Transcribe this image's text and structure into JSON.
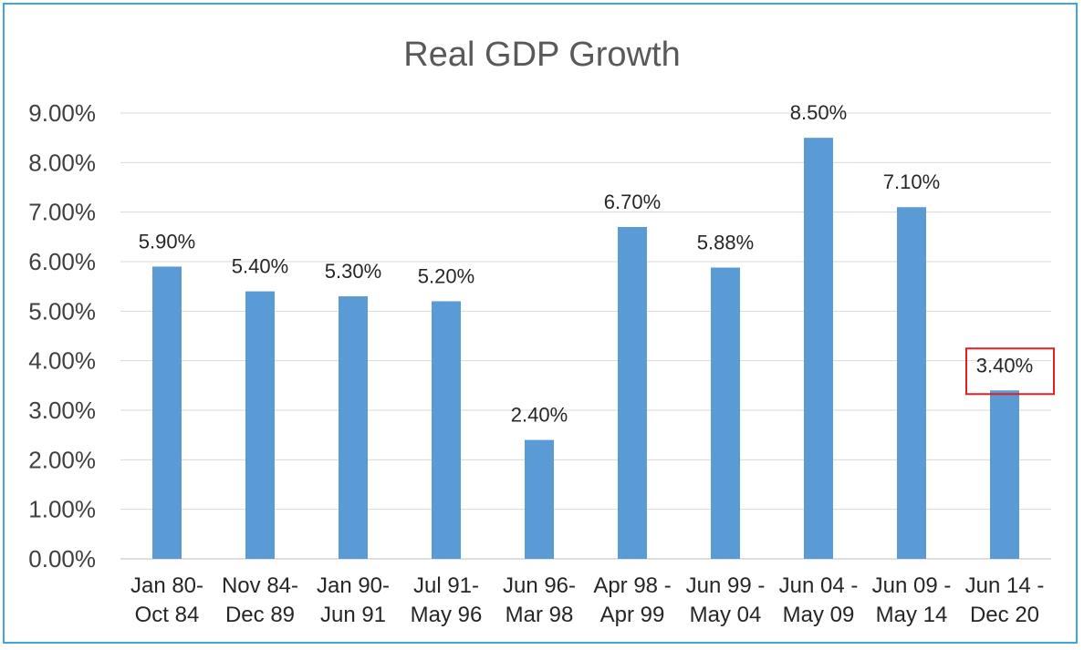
{
  "chart_data": {
    "type": "bar",
    "title": "Real GDP Growth",
    "categories": [
      [
        "Jan 80-",
        "Oct 84"
      ],
      [
        "Nov 84-",
        "Dec 89"
      ],
      [
        "Jan 90-",
        "Jun 91"
      ],
      [
        "Jul 91-",
        "May 96"
      ],
      [
        "Jun 96-",
        "Mar 98"
      ],
      [
        "Apr 98 -",
        "Apr 99"
      ],
      [
        "Jun 99 -",
        "May 04"
      ],
      [
        "Jun 04 -",
        "May 09"
      ],
      [
        "Jun 09 -",
        "May 14"
      ],
      [
        "Jun 14 -",
        "Dec 20"
      ]
    ],
    "values": [
      5.9,
      5.4,
      5.3,
      5.2,
      2.4,
      6.7,
      5.88,
      8.5,
      7.1,
      3.4
    ],
    "data_labels": [
      "5.90%",
      "5.40%",
      "5.30%",
      "5.20%",
      "2.40%",
      "6.70%",
      "5.88%",
      "8.50%",
      "7.10%",
      "3.40%"
    ],
    "yticks": [
      "0.00%",
      "1.00%",
      "2.00%",
      "3.00%",
      "4.00%",
      "5.00%",
      "6.00%",
      "7.00%",
      "8.00%",
      "9.00%"
    ],
    "ylim": [
      0,
      9
    ],
    "grid": true,
    "legend": "none",
    "highlighted_label_index": 9,
    "colors": {
      "bar": "#5b9bd5",
      "highlight_box": "#e02020",
      "frame": "#3fa7dc"
    }
  }
}
